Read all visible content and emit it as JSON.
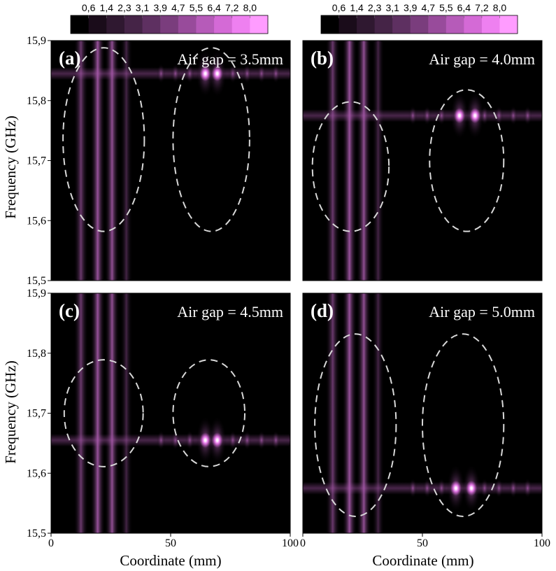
{
  "figure": {
    "colorbar": {
      "ticks": [
        "0,6",
        "1,4",
        "2,3",
        "3,1",
        "3,9",
        "4,7",
        "5,5",
        "6,4",
        "7,2",
        "8,0"
      ],
      "colors": [
        "#000000",
        "#1a0c1a",
        "#2f1830",
        "#452447",
        "#5e3061",
        "#7a3d7d",
        "#984b9b",
        "#b65bb9",
        "#d46ad6",
        "#ee80f0",
        "#ff9cff"
      ]
    },
    "xlabel": "Coordinate (mm)",
    "ylabel": "Frequency (GHz)",
    "xticks": [
      "0",
      "50",
      "100"
    ],
    "yticks": [
      "15,5",
      "15,6",
      "15,7",
      "15,8",
      "15,9"
    ]
  },
  "chart_data": {
    "type": "heatmap",
    "xlabel": "Coordinate (mm)",
    "ylabel": "Frequency (GHz)",
    "xlim": [
      0,
      100
    ],
    "ylim": [
      15.5,
      15.9
    ],
    "colorbar_ticks": [
      0.6,
      1.4,
      2.3,
      3.1,
      3.9,
      4.7,
      5.5,
      6.4,
      7.2,
      8.0
    ],
    "panels": [
      {
        "label": "(a)",
        "annotation": "Air gap = 3.5mm",
        "resonance_frequency": 15.845,
        "hot_spots": [
          {
            "x": 64.5,
            "y": 15.845
          },
          {
            "x": 69.5,
            "y": 15.845
          }
        ],
        "ellipses": [
          {
            "cx": 22,
            "cy": 15.735,
            "rx": 17,
            "ry": 0.153
          },
          {
            "cx": 67,
            "cy": 15.735,
            "rx": 16,
            "ry": 0.153
          }
        ]
      },
      {
        "label": "(b)",
        "annotation": "Air gap = 4.0mm",
        "resonance_frequency": 15.775,
        "hot_spots": [
          {
            "x": 65.5,
            "y": 15.775
          },
          {
            "x": 72.0,
            "y": 15.775
          }
        ],
        "ellipses": [
          {
            "cx": 20,
            "cy": 15.69,
            "rx": 16,
            "ry": 0.108
          },
          {
            "cx": 68.5,
            "cy": 15.7,
            "rx": 15.5,
            "ry": 0.118
          }
        ]
      },
      {
        "label": "(c)",
        "annotation": "Air gap = 4.5mm",
        "resonance_frequency": 15.655,
        "hot_spots": [
          {
            "x": 64.5,
            "y": 15.655
          },
          {
            "x": 69.5,
            "y": 15.655
          }
        ],
        "ellipses": [
          {
            "cx": 22,
            "cy": 15.7,
            "rx": 16.5,
            "ry": 0.089
          },
          {
            "cx": 66,
            "cy": 15.7,
            "rx": 15,
            "ry": 0.089
          }
        ]
      },
      {
        "label": "(d)",
        "annotation": "Air gap = 5.0mm",
        "resonance_frequency": 15.575,
        "hot_spots": [
          {
            "x": 64.0,
            "y": 15.575
          },
          {
            "x": 70.5,
            "y": 15.575
          }
        ],
        "ellipses": [
          {
            "cx": 22,
            "cy": 15.68,
            "rx": 17,
            "ry": 0.152
          },
          {
            "cx": 67,
            "cy": 15.68,
            "rx": 17,
            "ry": 0.152
          }
        ]
      }
    ]
  }
}
